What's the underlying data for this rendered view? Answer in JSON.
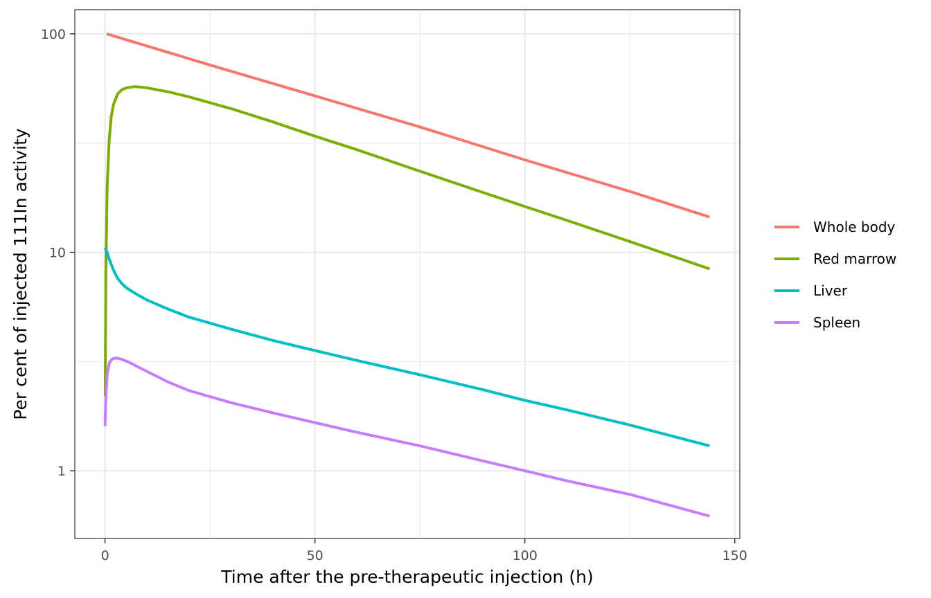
{
  "chart_data": {
    "type": "line",
    "xlabel": "Time after the pre-therapeutic injection (h)",
    "ylabel": "Per cent of injected 111In activity",
    "xlim": [
      -7.2,
      151.2
    ],
    "ylim": [
      0.49,
      129
    ],
    "y_scale": "log10",
    "x_ticks": [
      0,
      50,
      100,
      150
    ],
    "x_tick_labels": [
      "0",
      "50",
      "100",
      "150"
    ],
    "x_minor_ticks": [
      25,
      75,
      125
    ],
    "y_ticks": [
      1,
      10,
      100
    ],
    "y_tick_labels": [
      "1",
      "10",
      "100"
    ],
    "y_minor_ticks": [
      3.16,
      31.6
    ],
    "grid": true,
    "legend_position": "right",
    "series": [
      {
        "name": "Whole body",
        "color": "#F8766D",
        "x": [
          0.4,
          25,
          50,
          75,
          100,
          125,
          144
        ],
        "y": [
          100,
          72,
          52,
          37.5,
          26.5,
          19,
          14.5
        ]
      },
      {
        "name": "Red marrow",
        "color": "#7CAE00",
        "x": [
          0.05,
          0.2,
          0.5,
          1,
          1.5,
          2,
          3,
          4,
          5,
          6,
          7,
          8,
          10,
          15,
          20,
          30,
          40,
          50,
          60,
          75,
          90,
          100,
          110,
          125,
          144
        ],
        "y": [
          2.2,
          8,
          20,
          33,
          42,
          47.5,
          53,
          55.5,
          56.5,
          57,
          57.3,
          57.2,
          56.6,
          54.3,
          51.5,
          45.5,
          39.5,
          34,
          29.5,
          23.5,
          18.8,
          16.2,
          14,
          11.2,
          8.4
        ]
      },
      {
        "name": "Liver",
        "color": "#00BFC4",
        "x": [
          0,
          0.5,
          1,
          2,
          3,
          4,
          5,
          6,
          8,
          10,
          15,
          20,
          30,
          40,
          50,
          60,
          75,
          90,
          100,
          110,
          125,
          144
        ],
        "y": [
          10.5,
          10,
          9.3,
          8.3,
          7.6,
          7.2,
          6.9,
          6.7,
          6.35,
          6.05,
          5.5,
          5.05,
          4.45,
          3.95,
          3.55,
          3.2,
          2.75,
          2.35,
          2.1,
          1.9,
          1.62,
          1.3
        ]
      },
      {
        "name": "Spleen",
        "color": "#C77CFF",
        "x": [
          0,
          0.2,
          0.5,
          1,
          1.5,
          2,
          3,
          4,
          5,
          6,
          8,
          10,
          15,
          20,
          30,
          40,
          50,
          60,
          75,
          90,
          100,
          110,
          125,
          144
        ],
        "y": [
          1.6,
          2.2,
          2.75,
          3.1,
          3.22,
          3.27,
          3.28,
          3.24,
          3.18,
          3.12,
          2.98,
          2.85,
          2.55,
          2.33,
          2.05,
          1.84,
          1.66,
          1.5,
          1.3,
          1.11,
          1.0,
          0.9,
          0.78,
          0.62
        ]
      }
    ]
  }
}
